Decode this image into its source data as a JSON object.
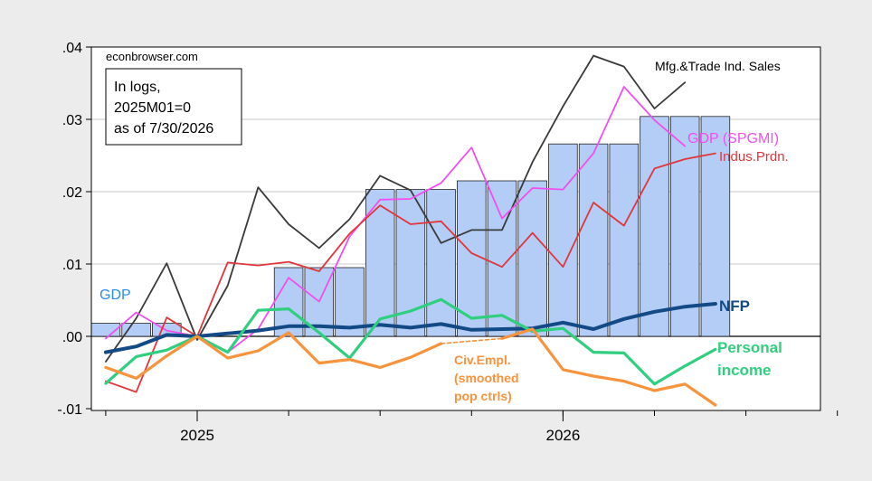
{
  "source_label": "econbrowser.com",
  "info_box": {
    "line1": "In logs,",
    "line2": "2025M01=0",
    "line3": "as of 7/30/2026"
  },
  "colors": {
    "background": "#ececec",
    "plot_bg": "#ffffff",
    "grid": "#c8c8c8",
    "gdp_bar": "#b3cdf7",
    "gdp_label": "#2b8ce6",
    "mfg": "#3a3a3a",
    "spgmi": "#f04ef0",
    "indus": "#e0363c",
    "nfp": "#134a86",
    "personal": "#2fcf7f",
    "civ": "#f6933c"
  },
  "chart_data": {
    "type": "line",
    "x_axis": {
      "start": "2024-10",
      "end": "2026-12",
      "tick_labels": [
        {
          "label": "2025",
          "month": "2025-01"
        },
        {
          "label": "2026",
          "month": "2026-01"
        }
      ]
    },
    "y_axis": {
      "ylim": [
        -0.01,
        0.04
      ],
      "ticks": [
        {
          "value": 0.04,
          "label": ".04"
        },
        {
          "value": 0.03,
          "label": ".03"
        },
        {
          "value": 0.02,
          "label": ".02"
        },
        {
          "value": 0.01,
          "label": ".01"
        },
        {
          "value": 0.0,
          "label": ".00"
        },
        {
          "value": -0.01,
          "label": "-.01"
        }
      ]
    },
    "grid": true,
    "bars": {
      "name": "GDP",
      "label": "GDP",
      "values": [
        {
          "start": "2024-10",
          "value": 0.0018
        },
        {
          "start": "2025-04",
          "value": 0.0095
        },
        {
          "start": "2025-07",
          "value": 0.0203
        },
        {
          "start": "2025-10",
          "value": 0.0215
        },
        {
          "start": "2026-01",
          "value": 0.0266
        },
        {
          "start": "2026-04",
          "value": 0.0304
        }
      ]
    },
    "series": [
      {
        "name": "Mfg.&Trade Ind. Sales",
        "color_key": "mfg",
        "width": 1.8,
        "points": [
          [
            "2024-10",
            -0.0035
          ],
          [
            "2024-11",
            0.0025
          ],
          [
            "2024-12",
            0.0101
          ],
          [
            "2025-01",
            -0.0005
          ],
          [
            "2025-02",
            0.007
          ],
          [
            "2025-03",
            0.0206
          ],
          [
            "2025-04",
            0.0155
          ],
          [
            "2025-05",
            0.0122
          ],
          [
            "2025-06",
            0.0162
          ],
          [
            "2025-07",
            0.0222
          ],
          [
            "2025-08",
            0.0202
          ],
          [
            "2025-09",
            0.0129
          ],
          [
            "2025-10",
            0.0147
          ],
          [
            "2025-11",
            0.0147
          ],
          [
            "2025-12",
            0.0241
          ],
          [
            "2026-01",
            0.0318
          ],
          [
            "2026-02",
            0.0388
          ],
          [
            "2026-03",
            0.0373
          ],
          [
            "2026-04",
            0.0315
          ],
          [
            "2026-05",
            0.0351
          ]
        ]
      },
      {
        "name": "GDP (SPGMI)",
        "color_key": "spgmi",
        "width": 1.8,
        "points": [
          [
            "2024-10",
            -0.0003
          ],
          [
            "2024-11",
            0.0033
          ],
          [
            "2024-12",
            0.0008
          ],
          [
            "2025-01",
            0.0
          ],
          [
            "2025-02",
            -0.0022
          ],
          [
            "2025-03",
            0.001
          ],
          [
            "2025-04",
            0.0081
          ],
          [
            "2025-05",
            0.0048
          ],
          [
            "2025-06",
            0.0138
          ],
          [
            "2025-07",
            0.0189
          ],
          [
            "2025-08",
            0.019
          ],
          [
            "2025-09",
            0.0212
          ],
          [
            "2025-10",
            0.0261
          ],
          [
            "2025-11",
            0.0163
          ],
          [
            "2025-12",
            0.0205
          ],
          [
            "2026-01",
            0.0203
          ],
          [
            "2026-02",
            0.0253
          ],
          [
            "2026-03",
            0.0345
          ],
          [
            "2026-04",
            0.0299
          ],
          [
            "2026-05",
            0.0263
          ]
        ]
      },
      {
        "name": "Indus.Prdn.",
        "color_key": "indus",
        "width": 1.8,
        "points": [
          [
            "2024-10",
            -0.0062
          ],
          [
            "2024-11",
            -0.0077
          ],
          [
            "2024-12",
            0.0026
          ],
          [
            "2025-01",
            0.0
          ],
          [
            "2025-02",
            0.0102
          ],
          [
            "2025-03",
            0.0098
          ],
          [
            "2025-04",
            0.0103
          ],
          [
            "2025-05",
            0.009
          ],
          [
            "2025-06",
            0.0142
          ],
          [
            "2025-07",
            0.0181
          ],
          [
            "2025-08",
            0.0155
          ],
          [
            "2025-09",
            0.0159
          ],
          [
            "2025-10",
            0.0115
          ],
          [
            "2025-11",
            0.0096
          ],
          [
            "2025-12",
            0.0143
          ],
          [
            "2026-01",
            0.0096
          ],
          [
            "2026-02",
            0.0185
          ],
          [
            "2026-03",
            0.0153
          ],
          [
            "2026-04",
            0.0232
          ],
          [
            "2026-05",
            0.0245
          ],
          [
            "2026-06",
            0.0253
          ]
        ]
      },
      {
        "name": "NFP",
        "color_key": "nfp",
        "width": 4,
        "points": [
          [
            "2024-10",
            -0.0022
          ],
          [
            "2024-11",
            -0.0014
          ],
          [
            "2024-12",
            0.0002
          ],
          [
            "2025-01",
            0.0
          ],
          [
            "2025-02",
            0.0004
          ],
          [
            "2025-03",
            0.0008
          ],
          [
            "2025-04",
            0.0014
          ],
          [
            "2025-05",
            0.0014
          ],
          [
            "2025-06",
            0.0012
          ],
          [
            "2025-07",
            0.0016
          ],
          [
            "2025-08",
            0.0012
          ],
          [
            "2025-09",
            0.0017
          ],
          [
            "2025-10",
            0.0009
          ],
          [
            "2025-11",
            0.001
          ],
          [
            "2025-12",
            0.0011
          ],
          [
            "2026-01",
            0.0019
          ],
          [
            "2026-02",
            0.001
          ],
          [
            "2026-03",
            0.0024
          ],
          [
            "2026-04",
            0.0034
          ],
          [
            "2026-05",
            0.0041
          ],
          [
            "2026-06",
            0.0045
          ]
        ]
      },
      {
        "name": "Personal income",
        "color_key": "personal",
        "width": 3.2,
        "points": [
          [
            "2024-10",
            -0.0065
          ],
          [
            "2024-11",
            -0.0028
          ],
          [
            "2024-12",
            -0.0019
          ],
          [
            "2025-01",
            0.0
          ],
          [
            "2025-02",
            -0.0022
          ],
          [
            "2025-03",
            0.0036
          ],
          [
            "2025-04",
            0.0038
          ],
          [
            "2025-05",
            0.0005
          ],
          [
            "2025-06",
            -0.003
          ],
          [
            "2025-07",
            0.0024
          ],
          [
            "2025-08",
            0.0035
          ],
          [
            "2025-09",
            0.0051
          ],
          [
            "2025-10",
            0.0025
          ],
          [
            "2025-11",
            0.0029
          ],
          [
            "2025-12",
            0.0007
          ],
          [
            "2026-01",
            0.0011
          ],
          [
            "2026-02",
            -0.0022
          ],
          [
            "2026-03",
            -0.0023
          ],
          [
            "2026-04",
            -0.0066
          ],
          [
            "2026-05",
            -0.0041
          ],
          [
            "2026-06",
            -0.0018
          ]
        ]
      },
      {
        "name": "Civ.Empl. (smoothed pop ctrls)",
        "color_key": "civ",
        "width": 3.2,
        "points": [
          [
            "2024-10",
            -0.0043
          ],
          [
            "2024-11",
            -0.0058
          ],
          [
            "2024-12",
            -0.0027
          ],
          [
            "2025-01",
            0.0
          ],
          [
            "2025-02",
            -0.003
          ],
          [
            "2025-03",
            -0.002
          ],
          [
            "2025-04",
            0.0005
          ],
          [
            "2025-05",
            -0.0037
          ],
          [
            "2025-06",
            -0.0032
          ],
          [
            "2025-07",
            -0.0043
          ],
          [
            "2025-08",
            -0.0029
          ],
          [
            "2025-09",
            -0.001
          ]
        ],
        "dashed_points": [
          [
            "2025-09",
            -0.001
          ],
          [
            "2025-11",
            -0.0003
          ]
        ],
        "points2": [
          [
            "2025-11",
            -0.0003
          ],
          [
            "2025-12",
            0.001
          ],
          [
            "2026-01",
            -0.0046
          ],
          [
            "2026-02",
            -0.0055
          ],
          [
            "2026-03",
            -0.0062
          ],
          [
            "2026-04",
            -0.0075
          ],
          [
            "2026-05",
            -0.0066
          ],
          [
            "2026-06",
            -0.0095
          ]
        ]
      }
    ],
    "labels": {
      "gdp": "GDP",
      "mfg": "Mfg.&Trade Ind. Sales",
      "spgmi": "GDP (SPGMI)",
      "indus": "Indus.Prdn.",
      "nfp": "NFP",
      "personal_1": "Personal",
      "personal_2": "income",
      "civ_1": "Civ.Empl.",
      "civ_2": "(smoothed",
      "civ_3": "pop ctrls)"
    }
  }
}
